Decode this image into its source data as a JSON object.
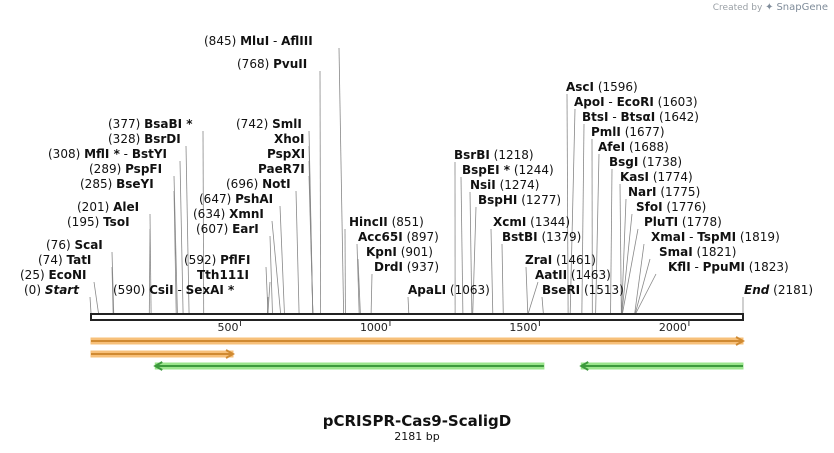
{
  "credit": {
    "prefix": "Created by",
    "brand": "SnapGene"
  },
  "map": {
    "name": "pCRISPR-Cas9-ScaligD",
    "length_label": "2181 bp",
    "length_bp": 2181,
    "ticks": [
      500,
      1000,
      1500,
      2000
    ],
    "colors": {
      "backbone": "#222222",
      "feature_orange_fill": "#f7c07a",
      "feature_orange_stroke": "#d08a32",
      "feature_green_fill": "#9be58c",
      "feature_green_stroke": "#3d9a3d",
      "line": "#888888"
    },
    "features": [
      {
        "name": "orange-arrow-full",
        "start": 0,
        "end": 2181,
        "direction": "right",
        "color": "orange"
      },
      {
        "name": "orange-arrow-short",
        "start": 0,
        "end": 475,
        "direction": "right",
        "color": "orange"
      },
      {
        "name": "green-arrow-left",
        "start": 215,
        "end": 1515,
        "direction": "left",
        "color": "green"
      },
      {
        "name": "green-arrow-right",
        "start": 1640,
        "end": 2181,
        "direction": "left",
        "color": "green"
      }
    ],
    "left_labels": [
      {
        "id": "start",
        "pos": "(0)",
        "bp": 0,
        "enzymes": [
          "Start"
        ],
        "italic": true
      },
      {
        "id": "econi",
        "pos": "(25)",
        "bp": 25,
        "enzymes": [
          "EcoNI"
        ]
      },
      {
        "id": "tati",
        "pos": "(74)",
        "bp": 74,
        "enzymes": [
          "TatI"
        ]
      },
      {
        "id": "scai",
        "pos": "(76)",
        "bp": 76,
        "enzymes": [
          "ScaI"
        ]
      },
      {
        "id": "tsoi",
        "pos": "(195)",
        "bp": 195,
        "enzymes": [
          "TsoI"
        ]
      },
      {
        "id": "alei",
        "pos": "(201)",
        "bp": 201,
        "enzymes": [
          "AleI"
        ]
      },
      {
        "id": "bseyi",
        "pos": "(285)",
        "bp": 285,
        "enzymes": [
          "BseYI"
        ]
      },
      {
        "id": "pspfi",
        "pos": "(289)",
        "bp": 289,
        "enzymes": [
          "PspFI"
        ]
      },
      {
        "id": "mfli",
        "pos": "(308)",
        "bp": 308,
        "enzymes": [
          "MflI *",
          "BstYI"
        ]
      },
      {
        "id": "bsrdi",
        "pos": "(328)",
        "bp": 328,
        "enzymes": [
          "BsrDI"
        ]
      },
      {
        "id": "bsabi",
        "pos": "(377)",
        "bp": 377,
        "enzymes": [
          "BsaBI *"
        ]
      }
    ],
    "center_labels": [
      {
        "id": "csii",
        "pos": "(590)",
        "bp": 590,
        "enzymes": [
          "CsiI",
          "SexAI *"
        ]
      },
      {
        "id": "tth111i",
        "pos": "",
        "bp": 592,
        "enzymes": [
          "Tth111I"
        ]
      },
      {
        "id": "pflfi",
        "pos": "(592)",
        "bp": 592,
        "enzymes": [
          "PflFI"
        ]
      },
      {
        "id": "eari",
        "pos": "(607)",
        "bp": 607,
        "enzymes": [
          "EarI"
        ]
      },
      {
        "id": "xmni",
        "pos": "(634)",
        "bp": 634,
        "enzymes": [
          "XmnI"
        ]
      },
      {
        "id": "pshai",
        "pos": "(647)",
        "bp": 647,
        "enzymes": [
          "PshAI"
        ]
      },
      {
        "id": "noti",
        "pos": "(696)",
        "bp": 696,
        "enzymes": [
          "NotI"
        ]
      },
      {
        "id": "paer7i",
        "pos": "",
        "bp": 742,
        "enzymes": [
          "PaeR7I"
        ]
      },
      {
        "id": "pspxi",
        "pos": "",
        "bp": 742,
        "enzymes": [
          "PspXI"
        ]
      },
      {
        "id": "xhoi",
        "pos": "",
        "bp": 742,
        "enzymes": [
          "XhoI"
        ]
      },
      {
        "id": "smli",
        "pos": "(742)",
        "bp": 742,
        "enzymes": [
          "SmlI"
        ]
      },
      {
        "id": "pvuii",
        "pos": "(768)",
        "bp": 768,
        "enzymes": [
          "PvuII"
        ]
      },
      {
        "id": "mlui",
        "pos": "(845)",
        "bp": 845,
        "enzymes": [
          "MluI",
          "AflIII"
        ]
      },
      {
        "id": "hincii",
        "pos": "(851)",
        "bp": 851,
        "enzymes": [
          "HincII"
        ]
      },
      {
        "id": "acc65i",
        "pos": "(897)",
        "bp": 897,
        "enzymes": [
          "Acc65I"
        ]
      },
      {
        "id": "kpni",
        "pos": "(901)",
        "bp": 901,
        "enzymes": [
          "KpnI"
        ]
      },
      {
        "id": "drdi",
        "pos": "(937)",
        "bp": 937,
        "enzymes": [
          "DrdI"
        ]
      },
      {
        "id": "apali",
        "pos": "(1063)",
        "bp": 1063,
        "enzymes": [
          "ApaLI"
        ]
      }
    ],
    "right_labels": [
      {
        "id": "bsrbi",
        "pos": "(1218)",
        "bp": 1218,
        "enzymes": [
          "BsrBI"
        ]
      },
      {
        "id": "bspei",
        "pos": "(1244)",
        "bp": 1244,
        "enzymes": [
          "BspEI *"
        ]
      },
      {
        "id": "nsii",
        "pos": "(1274)",
        "bp": 1274,
        "enzymes": [
          "NsiI"
        ]
      },
      {
        "id": "bsphi",
        "pos": "(1277)",
        "bp": 1277,
        "enzymes": [
          "BspHI"
        ]
      },
      {
        "id": "xcmi",
        "pos": "(1344)",
        "bp": 1344,
        "enzymes": [
          "XcmI"
        ]
      },
      {
        "id": "bstbi",
        "pos": "(1379)",
        "bp": 1379,
        "enzymes": [
          "BstBI"
        ]
      },
      {
        "id": "zrai",
        "pos": "(1461)",
        "bp": 1461,
        "enzymes": [
          "ZraI"
        ]
      },
      {
        "id": "aatii",
        "pos": "(1463)",
        "bp": 1463,
        "enzymes": [
          "AatII"
        ]
      },
      {
        "id": "bseri",
        "pos": "(1513)",
        "bp": 1513,
        "enzymes": [
          "BseRI"
        ]
      },
      {
        "id": "asci",
        "pos": "(1596)",
        "bp": 1596,
        "enzymes": [
          "AscI"
        ]
      },
      {
        "id": "apoi",
        "pos": "(1603)",
        "bp": 1603,
        "enzymes": [
          "ApoI",
          "EcoRI"
        ]
      },
      {
        "id": "btsi",
        "pos": "(1642)",
        "bp": 1642,
        "enzymes": [
          "BtsI",
          "BtsαI"
        ]
      },
      {
        "id": "pmli",
        "pos": "(1677)",
        "bp": 1677,
        "enzymes": [
          "PmlI"
        ]
      },
      {
        "id": "afei",
        "pos": "(1688)",
        "bp": 1688,
        "enzymes": [
          "AfeI"
        ]
      },
      {
        "id": "bsgi",
        "pos": "(1738)",
        "bp": 1738,
        "enzymes": [
          "BsgI"
        ]
      },
      {
        "id": "kasi",
        "pos": "(1774)",
        "bp": 1774,
        "enzymes": [
          "KasI"
        ]
      },
      {
        "id": "nari",
        "pos": "(1775)",
        "bp": 1775,
        "enzymes": [
          "NarI"
        ]
      },
      {
        "id": "sfoi",
        "pos": "(1776)",
        "bp": 1776,
        "enzymes": [
          "SfoI"
        ]
      },
      {
        "id": "pluti",
        "pos": "(1778)",
        "bp": 1778,
        "enzymes": [
          "PluTI"
        ]
      },
      {
        "id": "xmai",
        "pos": "(1819)",
        "bp": 1819,
        "enzymes": [
          "XmaI",
          "TspMI"
        ]
      },
      {
        "id": "smai",
        "pos": "(1821)",
        "bp": 1821,
        "enzymes": [
          "SmaI"
        ]
      },
      {
        "id": "kfli",
        "pos": "(1823)",
        "bp": 1823,
        "enzymes": [
          "KflI",
          "PpuMI"
        ]
      },
      {
        "id": "end",
        "pos": "(2181)",
        "bp": 2181,
        "enzymes": [
          "End"
        ],
        "italic": true
      }
    ]
  }
}
